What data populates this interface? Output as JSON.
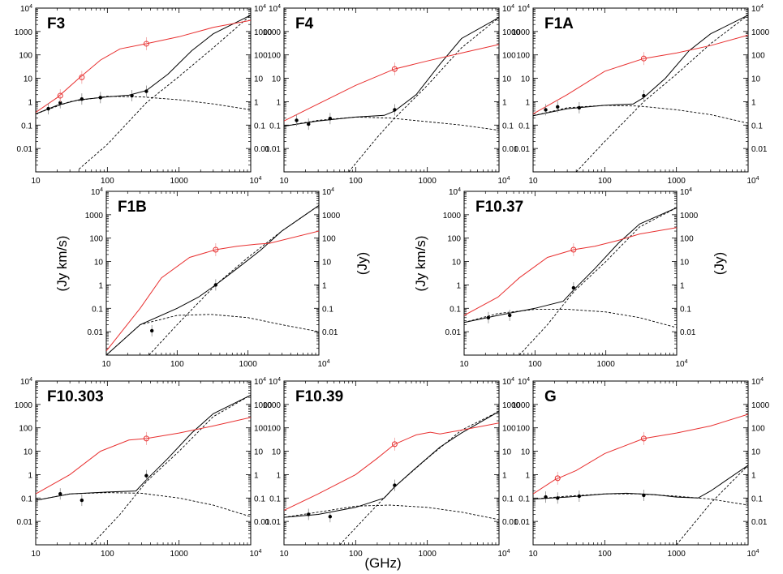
{
  "figure": {
    "xlabel": "(GHz)",
    "ylabel_left": "(Jy km/s)",
    "ylabel_right": "(Jy)"
  },
  "chart_data": [
    {
      "type": "line",
      "title": "F3",
      "xscale": "log",
      "yscale": "log",
      "xlim": [
        10,
        10000
      ],
      "ylim": [
        0.001,
        10000
      ],
      "xticks": [
        "10",
        "100",
        "1000",
        "10^4"
      ],
      "yticks": [
        "0.01",
        "0.1",
        "1",
        "10",
        "100",
        "1000",
        "10^4"
      ],
      "red_curve": [
        [
          10,
          0.35
        ],
        [
          20,
          1.5
        ],
        [
          40,
          10
        ],
        [
          80,
          60
        ],
        [
          150,
          180
        ],
        [
          350,
          300
        ],
        [
          1000,
          600
        ],
        [
          3000,
          1500
        ],
        [
          10000,
          3000
        ]
      ],
      "red_points": [
        {
          "x": 22,
          "y": 1.8
        },
        {
          "x": 44,
          "y": 11
        },
        {
          "x": 350,
          "y": 300
        }
      ],
      "black_curve": [
        [
          10,
          0.3
        ],
        [
          20,
          0.7
        ],
        [
          40,
          1.2
        ],
        [
          100,
          1.6
        ],
        [
          200,
          1.9
        ],
        [
          350,
          3
        ],
        [
          700,
          15
        ],
        [
          1500,
          150
        ],
        [
          3000,
          800
        ],
        [
          10000,
          5000
        ]
      ],
      "black_points": [
        {
          "x": 15,
          "y": 0.5
        },
        {
          "x": 22,
          "y": 0.9
        },
        {
          "x": 44,
          "y": 1.3
        },
        {
          "x": 80,
          "y": 1.5
        },
        {
          "x": 220,
          "y": 1.8
        },
        {
          "x": 350,
          "y": 2.8
        }
      ],
      "dashed_free_free": [
        [
          10,
          0.3
        ],
        [
          30,
          1
        ],
        [
          100,
          1.7
        ],
        [
          300,
          1.6
        ],
        [
          1000,
          1.2
        ],
        [
          3000,
          0.8
        ],
        [
          10000,
          0.45
        ]
      ],
      "dashed_dust": [
        [
          40,
          0.0013
        ],
        [
          100,
          0.015
        ],
        [
          350,
          0.9
        ],
        [
          1000,
          12
        ],
        [
          3000,
          200
        ],
        [
          10000,
          5000
        ]
      ]
    },
    {
      "type": "line",
      "title": "F4",
      "xscale": "log",
      "yscale": "log",
      "xlim": [
        10,
        10000
      ],
      "ylim": [
        0.001,
        10000
      ],
      "xticks": [
        "10",
        "100",
        "1000",
        "10^4"
      ],
      "yticks": [
        "0.01",
        "0.1",
        "1",
        "10",
        "100",
        "1000",
        "10^4"
      ],
      "red_curve": [
        [
          10,
          0.15
        ],
        [
          30,
          0.8
        ],
        [
          100,
          5
        ],
        [
          350,
          25
        ],
        [
          1000,
          55
        ],
        [
          3000,
          120
        ],
        [
          10000,
          280
        ]
      ],
      "red_points": [
        {
          "x": 350,
          "y": 25
        }
      ],
      "black_curve": [
        [
          10,
          0.09
        ],
        [
          30,
          0.15
        ],
        [
          100,
          0.22
        ],
        [
          250,
          0.26
        ],
        [
          350,
          0.4
        ],
        [
          700,
          2
        ],
        [
          1500,
          40
        ],
        [
          3000,
          500
        ],
        [
          10000,
          4000
        ]
      ],
      "black_points": [
        {
          "x": 15,
          "y": 0.16
        },
        {
          "x": 22,
          "y": 0.11
        },
        {
          "x": 44,
          "y": 0.19
        },
        {
          "x": 350,
          "y": 0.45
        }
      ],
      "dashed_free_free": [
        [
          10,
          0.09
        ],
        [
          30,
          0.16
        ],
        [
          100,
          0.22
        ],
        [
          300,
          0.2
        ],
        [
          1000,
          0.14
        ],
        [
          3000,
          0.1
        ],
        [
          10000,
          0.06
        ]
      ],
      "dashed_dust": [
        [
          80,
          0.001
        ],
        [
          200,
          0.03
        ],
        [
          350,
          0.2
        ],
        [
          1000,
          5
        ],
        [
          3000,
          200
        ],
        [
          10000,
          4000
        ]
      ]
    },
    {
      "type": "line",
      "title": "F1A",
      "xscale": "log",
      "yscale": "log",
      "xlim": [
        10,
        10000
      ],
      "ylim": [
        0.001,
        10000
      ],
      "xticks": [
        "10",
        "100",
        "1000",
        "10^4"
      ],
      "yticks": [
        "0.01",
        "0.1",
        "1",
        "10",
        "100",
        "1000",
        "10^4"
      ],
      "red_curve": [
        [
          10,
          0.3
        ],
        [
          30,
          2
        ],
        [
          100,
          20
        ],
        [
          350,
          70
        ],
        [
          1000,
          120
        ],
        [
          3000,
          250
        ],
        [
          10000,
          700
        ]
      ],
      "red_points": [
        {
          "x": 350,
          "y": 70
        }
      ],
      "black_curve": [
        [
          10,
          0.25
        ],
        [
          30,
          0.5
        ],
        [
          100,
          0.7
        ],
        [
          250,
          0.8
        ],
        [
          350,
          1.5
        ],
        [
          700,
          10
        ],
        [
          1500,
          150
        ],
        [
          3000,
          800
        ],
        [
          10000,
          5000
        ]
      ],
      "black_points": [
        {
          "x": 15,
          "y": 0.45
        },
        {
          "x": 22,
          "y": 0.6
        },
        {
          "x": 44,
          "y": 0.55
        },
        {
          "x": 350,
          "y": 1.8
        }
      ],
      "dashed_free_free": [
        [
          10,
          0.25
        ],
        [
          30,
          0.55
        ],
        [
          100,
          0.7
        ],
        [
          300,
          0.65
        ],
        [
          1000,
          0.45
        ],
        [
          3000,
          0.28
        ],
        [
          10000,
          0.12
        ]
      ],
      "dashed_dust": [
        [
          40,
          0.001
        ],
        [
          100,
          0.02
        ],
        [
          350,
          1
        ],
        [
          1000,
          15
        ],
        [
          3000,
          300
        ],
        [
          10000,
          5000
        ]
      ]
    },
    {
      "type": "line",
      "title": "F1B",
      "xscale": "log",
      "yscale": "log",
      "xlim": [
        10,
        10000
      ],
      "ylim": [
        0.001,
        10000
      ],
      "xticks": [
        "10",
        "100",
        "1000",
        "10^4"
      ],
      "yticks": [
        "0.01",
        "0.1",
        "1",
        "10",
        "100",
        "1000",
        "10^4"
      ],
      "red_curve": [
        [
          10,
          0.0015
        ],
        [
          30,
          0.1
        ],
        [
          60,
          2
        ],
        [
          150,
          15
        ],
        [
          350,
          32
        ],
        [
          700,
          45
        ],
        [
          1300,
          55
        ],
        [
          2000,
          60
        ],
        [
          10000,
          200
        ]
      ],
      "red_points": [
        {
          "x": 350,
          "y": 32
        }
      ],
      "black_curve": [
        [
          10,
          0.001
        ],
        [
          30,
          0.02
        ],
        [
          100,
          0.1
        ],
        [
          200,
          0.3
        ],
        [
          350,
          1
        ],
        [
          700,
          5
        ],
        [
          1500,
          30
        ],
        [
          3000,
          200
        ],
        [
          10000,
          2500
        ]
      ],
      "black_points": [
        {
          "x": 44,
          "y": 0.011
        },
        {
          "x": 350,
          "y": 1
        }
      ],
      "dashed_free_free": [
        [
          10,
          0.001
        ],
        [
          30,
          0.02
        ],
        [
          100,
          0.05
        ],
        [
          300,
          0.055
        ],
        [
          1000,
          0.04
        ],
        [
          3000,
          0.02
        ],
        [
          10000,
          0.01
        ]
      ],
      "dashed_dust": [
        [
          40,
          0.001
        ],
        [
          100,
          0.02
        ],
        [
          350,
          1
        ],
        [
          1000,
          15
        ],
        [
          3000,
          200
        ],
        [
          10000,
          2500
        ]
      ]
    },
    {
      "type": "line",
      "title": "F10.37",
      "xscale": "log",
      "yscale": "log",
      "xlim": [
        10,
        10000
      ],
      "ylim": [
        0.001,
        10000
      ],
      "xticks": [
        "10",
        "100",
        "1000",
        "10^4"
      ],
      "yticks": [
        "0.01",
        "0.1",
        "1",
        "10",
        "100",
        "1000",
        "10^4"
      ],
      "red_curve": [
        [
          10,
          0.05
        ],
        [
          30,
          0.3
        ],
        [
          60,
          2
        ],
        [
          150,
          15
        ],
        [
          350,
          32
        ],
        [
          700,
          45
        ],
        [
          1500,
          80
        ],
        [
          3000,
          150
        ],
        [
          10000,
          280
        ]
      ],
      "red_points": [
        {
          "x": 350,
          "y": 32
        }
      ],
      "black_curve": [
        [
          10,
          0.025
        ],
        [
          30,
          0.05
        ],
        [
          100,
          0.1
        ],
        [
          250,
          0.2
        ],
        [
          350,
          0.6
        ],
        [
          700,
          5
        ],
        [
          1500,
          60
        ],
        [
          3000,
          400
        ],
        [
          10000,
          2000
        ]
      ],
      "black_points": [
        {
          "x": 22,
          "y": 0.04
        },
        {
          "x": 44,
          "y": 0.05
        },
        {
          "x": 350,
          "y": 0.75
        }
      ],
      "dashed_free_free": [
        [
          10,
          0.025
        ],
        [
          30,
          0.06
        ],
        [
          100,
          0.09
        ],
        [
          300,
          0.09
        ],
        [
          1000,
          0.07
        ],
        [
          3000,
          0.04
        ],
        [
          10000,
          0.015
        ]
      ],
      "dashed_dust": [
        [
          60,
          0.001
        ],
        [
          150,
          0.02
        ],
        [
          350,
          0.5
        ],
        [
          1000,
          10
        ],
        [
          3000,
          300
        ],
        [
          10000,
          2000
        ]
      ]
    },
    {
      "type": "line",
      "title": "F10.303",
      "xscale": "log",
      "yscale": "log",
      "xlim": [
        10,
        10000
      ],
      "ylim": [
        0.001,
        10000
      ],
      "xticks": [
        "10",
        "100",
        "1000",
        "10^4"
      ],
      "yticks": [
        "0.01",
        "0.1",
        "1",
        "10",
        "100",
        "1000",
        "10^4"
      ],
      "red_curve": [
        [
          10,
          0.15
        ],
        [
          30,
          1
        ],
        [
          80,
          10
        ],
        [
          200,
          30
        ],
        [
          350,
          35
        ],
        [
          1000,
          60
        ],
        [
          3000,
          120
        ],
        [
          10000,
          280
        ]
      ],
      "red_points": [
        {
          "x": 350,
          "y": 35
        }
      ],
      "black_curve": [
        [
          10,
          0.08
        ],
        [
          30,
          0.15
        ],
        [
          100,
          0.18
        ],
        [
          250,
          0.2
        ],
        [
          350,
          0.6
        ],
        [
          700,
          5
        ],
        [
          1500,
          60
        ],
        [
          3000,
          400
        ],
        [
          10000,
          2500
        ]
      ],
      "black_points": [
        {
          "x": 22,
          "y": 0.15
        },
        {
          "x": 44,
          "y": 0.08
        },
        {
          "x": 350,
          "y": 0.9
        }
      ],
      "dashed_free_free": [
        [
          10,
          0.08
        ],
        [
          30,
          0.15
        ],
        [
          100,
          0.17
        ],
        [
          300,
          0.16
        ],
        [
          1000,
          0.1
        ],
        [
          3000,
          0.05
        ],
        [
          10000,
          0.016
        ]
      ],
      "dashed_dust": [
        [
          60,
          0.001
        ],
        [
          150,
          0.02
        ],
        [
          350,
          0.5
        ],
        [
          1000,
          10
        ],
        [
          3000,
          300
        ],
        [
          10000,
          2500
        ]
      ]
    },
    {
      "type": "line",
      "title": "F10.39",
      "xscale": "log",
      "yscale": "log",
      "xlim": [
        10,
        10000
      ],
      "ylim": [
        0.001,
        10000
      ],
      "xticks": [
        "10",
        "100",
        "1000",
        "10^4"
      ],
      "yticks": [
        "0.01",
        "0.1",
        "1",
        "10",
        "100",
        "1000",
        "10^4"
      ],
      "red_curve": [
        [
          10,
          0.03
        ],
        [
          30,
          0.15
        ],
        [
          100,
          1
        ],
        [
          200,
          5
        ],
        [
          350,
          20
        ],
        [
          700,
          50
        ],
        [
          1100,
          65
        ],
        [
          1500,
          55
        ],
        [
          3000,
          80
        ],
        [
          10000,
          160
        ]
      ],
      "red_points": [
        {
          "x": 350,
          "y": 20
        }
      ],
      "black_curve": [
        [
          10,
          0.015
        ],
        [
          30,
          0.02
        ],
        [
          100,
          0.04
        ],
        [
          250,
          0.1
        ],
        [
          350,
          0.3
        ],
        [
          700,
          2
        ],
        [
          1500,
          15
        ],
        [
          3000,
          60
        ],
        [
          10000,
          500
        ]
      ],
      "black_points": [
        {
          "x": 22,
          "y": 0.02
        },
        {
          "x": 44,
          "y": 0.016
        },
        {
          "x": 350,
          "y": 0.35
        }
      ],
      "dashed_free_free": [
        [
          10,
          0.015
        ],
        [
          30,
          0.025
        ],
        [
          100,
          0.045
        ],
        [
          300,
          0.05
        ],
        [
          1000,
          0.04
        ],
        [
          3000,
          0.025
        ],
        [
          10000,
          0.012
        ]
      ],
      "dashed_dust": [
        [
          60,
          0.001
        ],
        [
          150,
          0.02
        ],
        [
          350,
          0.3
        ],
        [
          1000,
          5
        ],
        [
          3000,
          80
        ],
        [
          10000,
          500
        ]
      ]
    },
    {
      "type": "line",
      "title": "G",
      "xscale": "log",
      "yscale": "log",
      "xlim": [
        10,
        10000
      ],
      "ylim": [
        0.001,
        10000
      ],
      "xticks": [
        "10",
        "100",
        "1000",
        "10^4"
      ],
      "yticks": [
        "0.01",
        "0.1",
        "1",
        "10",
        "100",
        "1000",
        "10^4"
      ],
      "red_curve": [
        [
          10,
          0.15
        ],
        [
          20,
          0.6
        ],
        [
          40,
          1.5
        ],
        [
          100,
          8
        ],
        [
          350,
          35
        ],
        [
          1000,
          60
        ],
        [
          3000,
          120
        ],
        [
          10000,
          380
        ]
      ],
      "red_points": [
        {
          "x": 22,
          "y": 0.7
        },
        {
          "x": 350,
          "y": 35
        }
      ],
      "black_curve": [
        [
          10,
          0.09
        ],
        [
          30,
          0.11
        ],
        [
          100,
          0.15
        ],
        [
          200,
          0.16
        ],
        [
          500,
          0.14
        ],
        [
          1000,
          0.11
        ],
        [
          2000,
          0.1
        ],
        [
          3000,
          0.2
        ],
        [
          10000,
          2.5
        ]
      ],
      "black_points": [
        {
          "x": 15,
          "y": 0.11
        },
        {
          "x": 22,
          "y": 0.1
        },
        {
          "x": 44,
          "y": 0.12
        },
        {
          "x": 350,
          "y": 0.13
        }
      ],
      "dashed_free_free": [
        [
          10,
          0.09
        ],
        [
          30,
          0.12
        ],
        [
          100,
          0.15
        ],
        [
          300,
          0.15
        ],
        [
          1000,
          0.12
        ],
        [
          3000,
          0.09
        ],
        [
          10000,
          0.05
        ]
      ],
      "dashed_dust": [
        [
          1000,
          0.001
        ],
        [
          3000,
          0.06
        ],
        [
          10000,
          2.5
        ]
      ]
    }
  ]
}
